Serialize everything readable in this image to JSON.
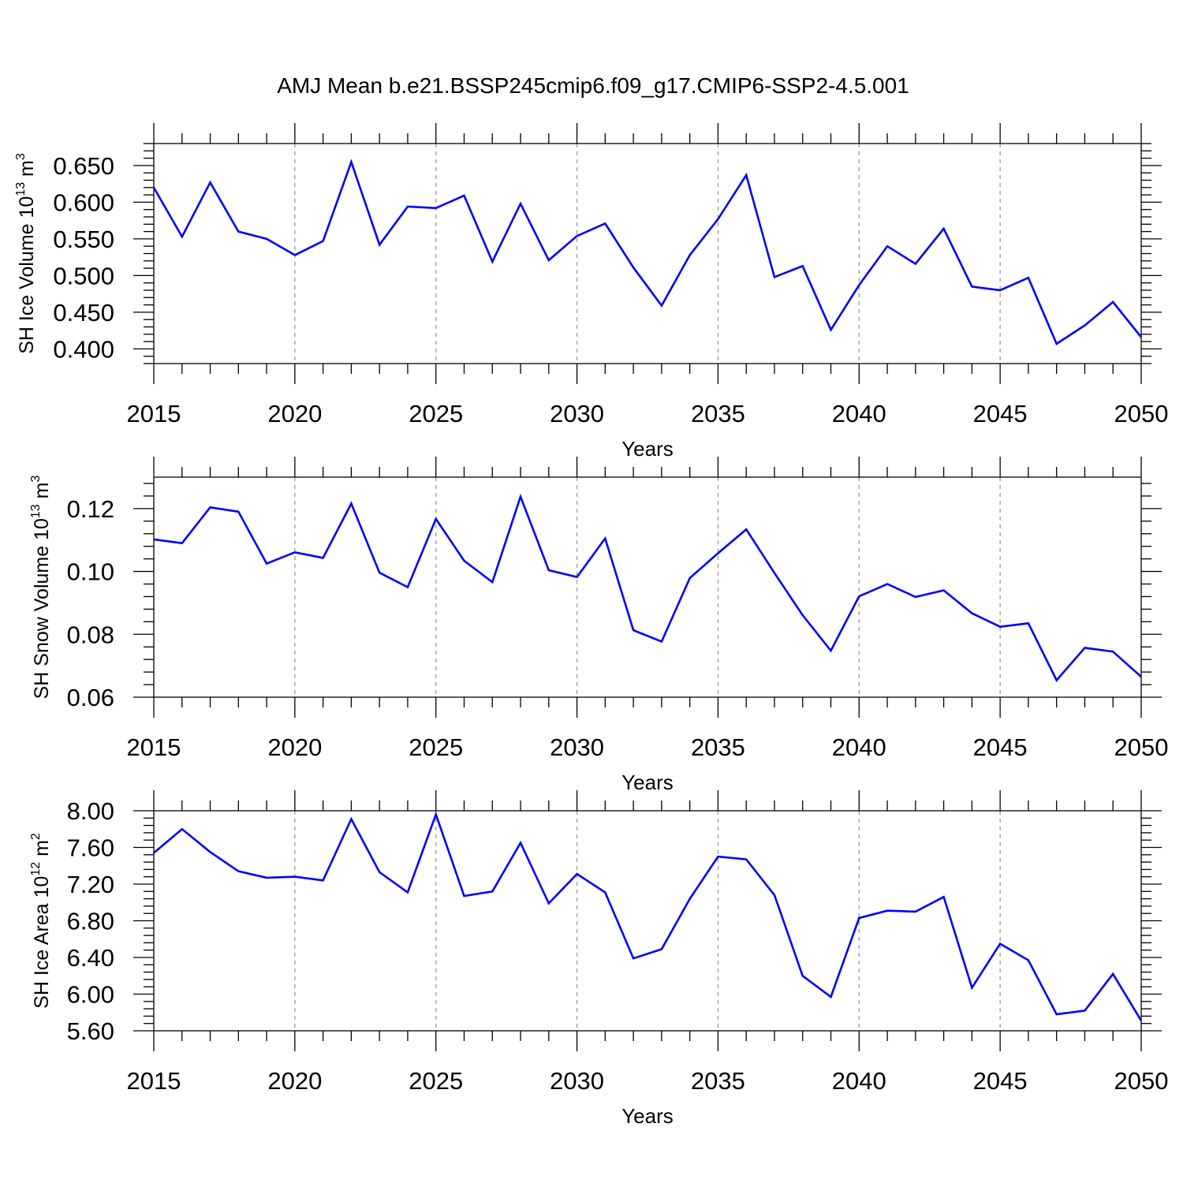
{
  "chart_data": {
    "type": "line",
    "title": "AMJ Mean b.e21.BSSP245cmip6.f09_g17.CMIP6-SSP2-4.5.001",
    "line_color": "#0000ff",
    "grid_color": "#999999",
    "x": [
      2015,
      2016,
      2017,
      2018,
      2019,
      2020,
      2021,
      2022,
      2023,
      2024,
      2025,
      2026,
      2027,
      2028,
      2029,
      2030,
      2031,
      2032,
      2033,
      2034,
      2035,
      2036,
      2037,
      2038,
      2039,
      2040,
      2041,
      2042,
      2043,
      2044,
      2045,
      2046,
      2047,
      2048,
      2049,
      2050
    ],
    "xlim": [
      2015,
      2050
    ],
    "xticks": [
      "2015",
      "2020",
      "2025",
      "2030",
      "2035",
      "2040",
      "2045",
      "2050"
    ],
    "panels": [
      {
        "name": "ice-volume",
        "ylabel_main": "SH Ice Volume 10",
        "ylabel_exp": "13",
        "ylabel_unit": " m",
        "ylabel_unit_exp": "3",
        "xlabel": "Years",
        "ylim": [
          0.38,
          0.68
        ],
        "yticks": [
          0.4,
          0.45,
          0.5,
          0.55,
          0.6,
          0.65
        ],
        "ytick_labels": [
          "0.400",
          "0.450",
          "0.500",
          "0.550",
          "0.600",
          "0.650"
        ],
        "values": [
          0.62,
          0.553,
          0.627,
          0.56,
          0.55,
          0.528,
          0.547,
          0.655,
          0.542,
          0.594,
          0.592,
          0.609,
          0.519,
          0.598,
          0.521,
          0.554,
          0.571,
          0.511,
          0.459,
          0.528,
          0.577,
          0.637,
          0.498,
          0.513,
          0.426,
          0.487,
          0.54,
          0.516,
          0.564,
          0.485,
          0.48,
          0.497,
          0.407,
          0.432,
          0.464,
          0.416
        ]
      },
      {
        "name": "snow-volume",
        "ylabel_main": "SH Snow Volume 10",
        "ylabel_exp": "13",
        "ylabel_unit": " m",
        "ylabel_unit_exp": "3",
        "xlabel": "Years",
        "ylim": [
          0.06,
          0.13
        ],
        "yticks": [
          0.06,
          0.08,
          0.1,
          0.12
        ],
        "ytick_labels": [
          "0.06",
          "0.08",
          "0.10",
          "0.12"
        ],
        "values": [
          0.1102,
          0.109,
          0.1204,
          0.119,
          0.1025,
          0.1061,
          0.1043,
          0.1216,
          0.0996,
          0.095,
          0.1167,
          0.1034,
          0.0966,
          0.1238,
          0.1004,
          0.0982,
          0.1105,
          0.0813,
          0.0777,
          0.0979,
          0.1058,
          0.1134,
          0.0995,
          0.0861,
          0.0748,
          0.0921,
          0.096,
          0.0919,
          0.094,
          0.0867,
          0.0824,
          0.0835,
          0.0654,
          0.0757,
          0.0745,
          0.0665
        ]
      },
      {
        "name": "ice-area",
        "ylabel_main": "SH Ice Area 10",
        "ylabel_exp": "12",
        "ylabel_unit": " m",
        "ylabel_unit_exp": "2",
        "xlabel": "Years",
        "ylim": [
          5.6,
          8.0
        ],
        "yticks": [
          5.6,
          6.0,
          6.4,
          6.8,
          7.2,
          7.6,
          8.0
        ],
        "ytick_labels": [
          "5.60",
          "6.00",
          "6.40",
          "6.80",
          "7.20",
          "7.60",
          "8.00"
        ],
        "values": [
          7.54,
          7.8,
          7.55,
          7.34,
          7.27,
          7.28,
          7.24,
          7.91,
          7.33,
          7.11,
          7.96,
          7.07,
          7.12,
          7.65,
          6.99,
          7.31,
          7.11,
          6.39,
          6.49,
          7.04,
          7.5,
          7.47,
          7.08,
          6.2,
          5.97,
          6.83,
          6.91,
          6.9,
          7.06,
          6.07,
          6.55,
          6.37,
          5.78,
          5.82,
          6.22,
          5.71
        ]
      }
    ]
  }
}
